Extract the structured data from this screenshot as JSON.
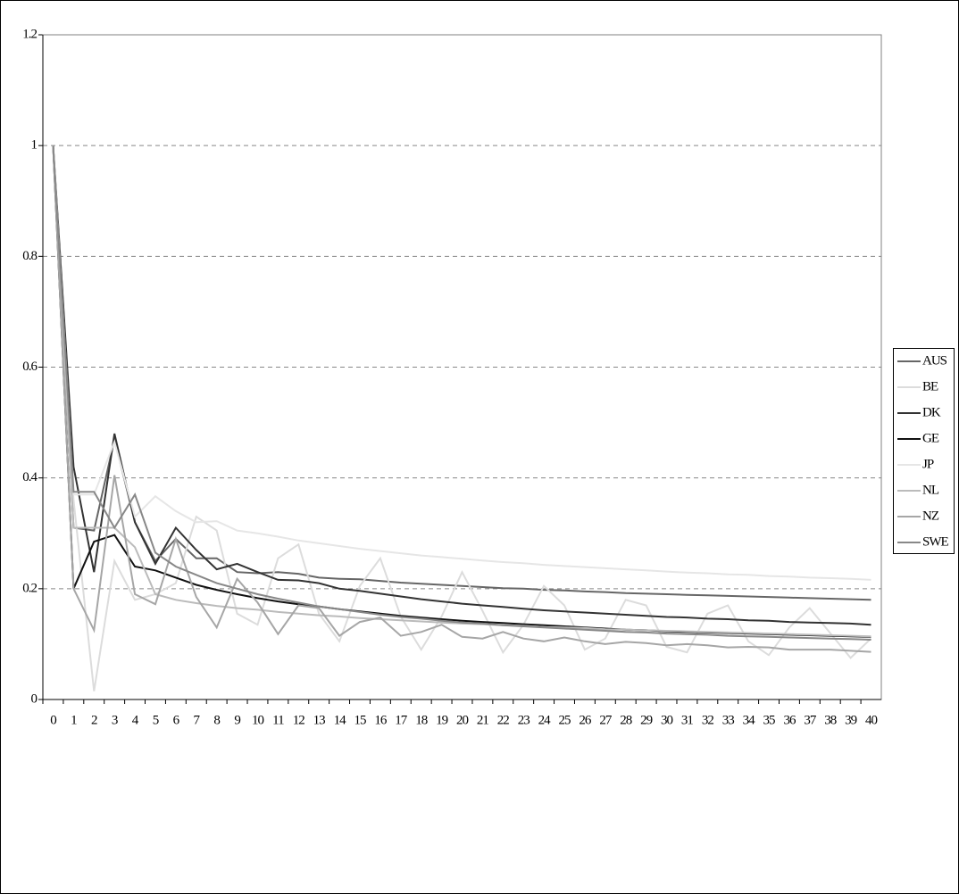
{
  "chart_data": {
    "type": "line",
    "categories": [
      "0",
      "1",
      "2",
      "3",
      "4",
      "5",
      "6",
      "7",
      "8",
      "9",
      "10",
      "11",
      "12",
      "13",
      "14",
      "15",
      "16",
      "17",
      "18",
      "19",
      "20",
      "21",
      "22",
      "23",
      "24",
      "25",
      "26",
      "27",
      "28",
      "29",
      "30",
      "31",
      "32",
      "33",
      "34",
      "35",
      "36",
      "37",
      "38",
      "39",
      "40"
    ],
    "ylim": [
      0,
      1.2
    ],
    "yticks": [
      0,
      0.2,
      0.4,
      0.6,
      0.8,
      1,
      1.2
    ],
    "grid": true,
    "series": [
      {
        "name": "AUS",
        "color": "#666666",
        "values": [
          1,
          0.31,
          0.305,
          0.47,
          0.32,
          0.25,
          0.29,
          0.255,
          0.255,
          0.23,
          0.228,
          0.23,
          0.227,
          0.22,
          0.218,
          0.217,
          0.214,
          0.211,
          0.209,
          0.207,
          0.205,
          0.203,
          0.201,
          0.2,
          0.198,
          0.197,
          0.195,
          0.194,
          0.192,
          0.191,
          0.19,
          0.189,
          0.188,
          0.187,
          0.186,
          0.185,
          0.184,
          0.183,
          0.182,
          0.181,
          0.18
        ]
      },
      {
        "name": "BE",
        "color": "#dcdcdc",
        "values": [
          1,
          0.36,
          0.015,
          0.25,
          0.18,
          0.19,
          0.21,
          0.33,
          0.305,
          0.155,
          0.135,
          0.255,
          0.28,
          0.155,
          0.105,
          0.205,
          0.255,
          0.15,
          0.09,
          0.15,
          0.23,
          0.16,
          0.085,
          0.135,
          0.205,
          0.17,
          0.09,
          0.11,
          0.18,
          0.17,
          0.095,
          0.085,
          0.155,
          0.17,
          0.105,
          0.08,
          0.13,
          0.165,
          0.12,
          0.075,
          0.11
        ]
      },
      {
        "name": "DK",
        "color": "#333333",
        "values": [
          1,
          0.42,
          0.23,
          0.48,
          0.32,
          0.245,
          0.31,
          0.27,
          0.235,
          0.245,
          0.23,
          0.216,
          0.215,
          0.21,
          0.2,
          0.196,
          0.191,
          0.186,
          0.181,
          0.177,
          0.173,
          0.17,
          0.167,
          0.164,
          0.161,
          0.159,
          0.157,
          0.155,
          0.153,
          0.151,
          0.149,
          0.148,
          0.146,
          0.145,
          0.143,
          0.142,
          0.14,
          0.139,
          0.138,
          0.137,
          0.135
        ]
      },
      {
        "name": "GE",
        "color": "#111111",
        "values": [
          1,
          0.2,
          0.285,
          0.297,
          0.24,
          0.233,
          0.22,
          0.207,
          0.198,
          0.19,
          0.183,
          0.177,
          0.172,
          0.168,
          0.163,
          0.159,
          0.155,
          0.151,
          0.148,
          0.145,
          0.142,
          0.14,
          0.138,
          0.136,
          0.134,
          0.132,
          0.13,
          0.128,
          0.126,
          0.125,
          0.123,
          0.122,
          0.121,
          0.12,
          0.119,
          0.118,
          0.117,
          0.116,
          0.115,
          0.114,
          0.113
        ]
      },
      {
        "name": "JP",
        "color": "#e6e6e6",
        "values": [
          1,
          0.37,
          0.37,
          0.465,
          0.33,
          0.367,
          0.34,
          0.32,
          0.322,
          0.305,
          0.3,
          0.294,
          0.287,
          0.282,
          0.277,
          0.272,
          0.268,
          0.264,
          0.26,
          0.257,
          0.254,
          0.251,
          0.248,
          0.246,
          0.243,
          0.241,
          0.239,
          0.237,
          0.235,
          0.233,
          0.231,
          0.229,
          0.228,
          0.226,
          0.225,
          0.223,
          0.222,
          0.22,
          0.219,
          0.218,
          0.216
        ]
      },
      {
        "name": "NL",
        "color": "#bbbbbb",
        "values": [
          1,
          0.31,
          0.31,
          0.31,
          0.275,
          0.19,
          0.18,
          0.174,
          0.169,
          0.165,
          0.162,
          0.158,
          0.155,
          0.152,
          0.15,
          0.147,
          0.145,
          0.143,
          0.141,
          0.139,
          0.137,
          0.136,
          0.134,
          0.133,
          0.131,
          0.13,
          0.129,
          0.127,
          0.126,
          0.125,
          0.124,
          0.123,
          0.122,
          0.121,
          0.12,
          0.119,
          0.118,
          0.117,
          0.116,
          0.115,
          0.114
        ]
      },
      {
        "name": "NZ",
        "color": "#a6a6a6",
        "values": [
          1,
          0.2,
          0.125,
          0.405,
          0.19,
          0.172,
          0.29,
          0.185,
          0.13,
          0.218,
          0.175,
          0.118,
          0.17,
          0.165,
          0.115,
          0.14,
          0.148,
          0.115,
          0.122,
          0.135,
          0.113,
          0.11,
          0.122,
          0.11,
          0.105,
          0.112,
          0.105,
          0.1,
          0.104,
          0.102,
          0.098,
          0.1,
          0.098,
          0.094,
          0.095,
          0.094,
          0.09,
          0.09,
          0.09,
          0.088,
          0.086
        ]
      },
      {
        "name": "SWE",
        "color": "#888888",
        "values": [
          1,
          0.375,
          0.375,
          0.31,
          0.37,
          0.265,
          0.24,
          0.225,
          0.21,
          0.2,
          0.19,
          0.182,
          0.175,
          0.168,
          0.163,
          0.158,
          0.153,
          0.149,
          0.146,
          0.142,
          0.139,
          0.137,
          0.134,
          0.132,
          0.13,
          0.128,
          0.126,
          0.124,
          0.122,
          0.121,
          0.119,
          0.118,
          0.117,
          0.115,
          0.114,
          0.113,
          0.112,
          0.111,
          0.11,
          0.109,
          0.108
        ]
      }
    ]
  }
}
